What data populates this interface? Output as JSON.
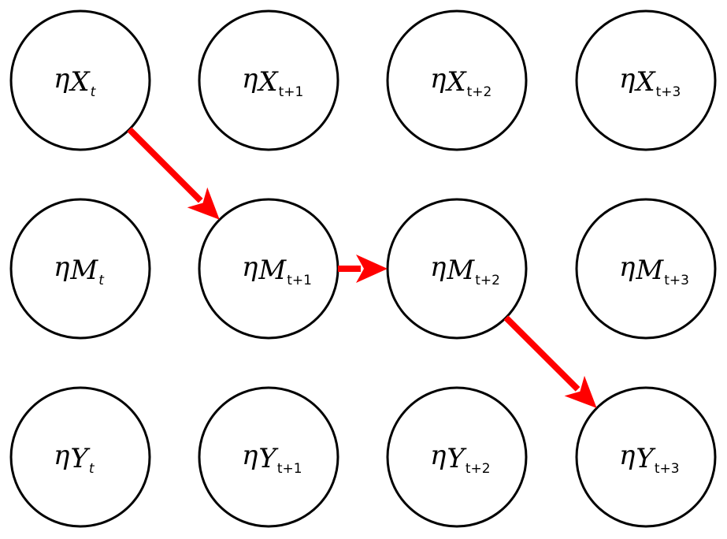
{
  "colors": {
    "node_stroke": "#000000",
    "node_fill": "#ffffff",
    "edge": "#ff0000"
  },
  "nodes": [
    {
      "id": "X_t",
      "symbol": "η",
      "variable": "X",
      "time": "t"
    },
    {
      "id": "X_t1",
      "symbol": "η",
      "variable": "X",
      "time": "t+1"
    },
    {
      "id": "X_t2",
      "symbol": "η",
      "variable": "X",
      "time": "t+2"
    },
    {
      "id": "X_t3",
      "symbol": "η",
      "variable": "X",
      "time": "t+3"
    },
    {
      "id": "M_t",
      "symbol": "η",
      "variable": "M",
      "time": "t"
    },
    {
      "id": "M_t1",
      "symbol": "η",
      "variable": "M",
      "time": "t+1"
    },
    {
      "id": "M_t2",
      "symbol": "η",
      "variable": "M",
      "time": "t+2"
    },
    {
      "id": "M_t3",
      "symbol": "η",
      "variable": "M",
      "time": "t+3"
    },
    {
      "id": "Y_t",
      "symbol": "η",
      "variable": "Y",
      "time": "t"
    },
    {
      "id": "Y_t1",
      "symbol": "η",
      "variable": "Y",
      "time": "t+1"
    },
    {
      "id": "Y_t2",
      "symbol": "η",
      "variable": "Y",
      "time": "t+2"
    },
    {
      "id": "Y_t3",
      "symbol": "η",
      "variable": "Y",
      "time": "t+3"
    }
  ],
  "edges": [
    {
      "from": "X_t",
      "to": "M_t1"
    },
    {
      "from": "M_t1",
      "to": "M_t2"
    },
    {
      "from": "M_t2",
      "to": "Y_t3"
    }
  ]
}
